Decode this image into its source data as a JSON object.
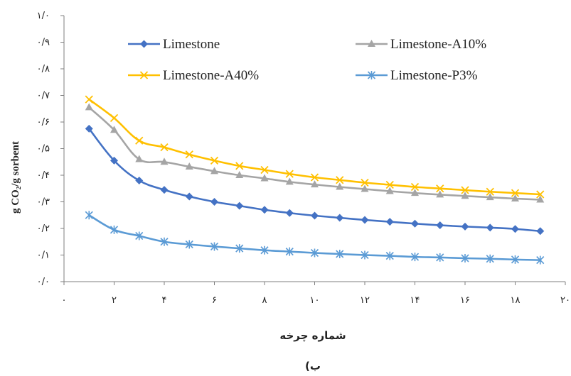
{
  "chart_data": {
    "type": "line",
    "xlabel": "شماره چرخه",
    "ylabel": "g CO₂/g sorbent",
    "caption": "ب)",
    "xlim": [
      0,
      20
    ],
    "ylim": [
      0,
      1.0
    ],
    "x_ticks": [
      0,
      2,
      4,
      6,
      8,
      10,
      12,
      14,
      16,
      18,
      20
    ],
    "x_tick_labels": [
      "۰",
      "۲",
      "۴",
      "۶",
      "۸",
      "۱۰",
      "۱۲",
      "۱۴",
      "۱۶",
      "۱۸",
      "۲۰"
    ],
    "y_ticks": [
      0,
      0.1,
      0.2,
      0.3,
      0.4,
      0.5,
      0.6,
      0.7,
      0.8,
      0.9,
      1.0
    ],
    "y_tick_labels": [
      "۰/۰",
      "۰/۱",
      "۰/۲",
      "۰/۳",
      "۰/۴",
      "۰/۵",
      "۰/۶",
      "۰/۷",
      "۰/۸",
      "۰/۹",
      "۱/۰"
    ],
    "grid": false,
    "legend_position": "top",
    "x": [
      1,
      2,
      3,
      4,
      5,
      6,
      7,
      8,
      9,
      10,
      11,
      12,
      13,
      14,
      15,
      16,
      17,
      18,
      19
    ],
    "series": [
      {
        "name": "Limestone",
        "color": "#4472C4",
        "marker": "diamond",
        "values": [
          0.575,
          0.455,
          0.38,
          0.345,
          0.32,
          0.3,
          0.285,
          0.27,
          0.258,
          0.248,
          0.24,
          0.232,
          0.225,
          0.218,
          0.212,
          0.207,
          0.203,
          0.198,
          0.19
        ]
      },
      {
        "name": "Limestone-A10%",
        "color": "#A5A5A5",
        "marker": "triangle",
        "values": [
          0.655,
          0.57,
          0.46,
          0.45,
          0.432,
          0.415,
          0.4,
          0.388,
          0.375,
          0.365,
          0.356,
          0.348,
          0.34,
          0.333,
          0.327,
          0.322,
          0.317,
          0.312,
          0.308
        ]
      },
      {
        "name": "Limestone-A40%",
        "color": "#FFC000",
        "marker": "x",
        "values": [
          0.685,
          0.615,
          0.53,
          0.505,
          0.478,
          0.455,
          0.435,
          0.42,
          0.405,
          0.392,
          0.382,
          0.372,
          0.364,
          0.356,
          0.35,
          0.344,
          0.338,
          0.333,
          0.328
        ]
      },
      {
        "name": "Limestone-P3%",
        "color": "#5B9BD5",
        "marker": "star",
        "values": [
          0.25,
          0.195,
          0.172,
          0.15,
          0.14,
          0.132,
          0.125,
          0.118,
          0.113,
          0.108,
          0.104,
          0.1,
          0.097,
          0.093,
          0.091,
          0.088,
          0.086,
          0.083,
          0.081
        ]
      }
    ]
  }
}
